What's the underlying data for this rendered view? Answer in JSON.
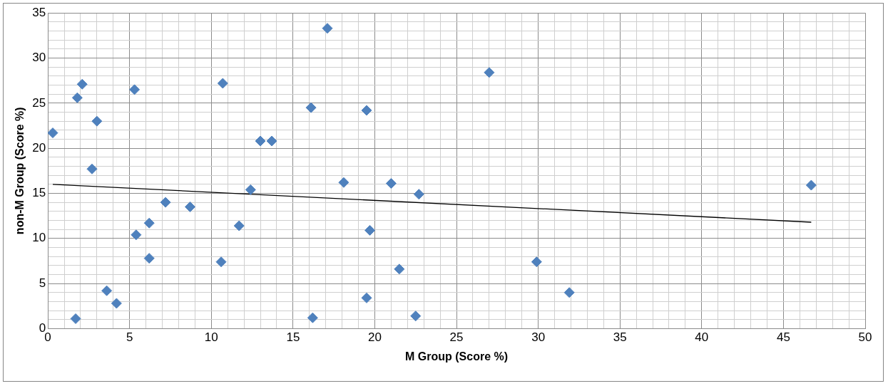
{
  "chart_data": {
    "type": "scatter",
    "xlabel": "M Group (Score %)",
    "ylabel": "non-M Group (Score %)",
    "x": [
      0.3,
      1.8,
      2.1,
      3.0,
      2.7,
      1.7,
      3.6,
      4.2,
      5.3,
      5.4,
      6.2,
      6.2,
      7.2,
      8.7,
      10.7,
      10.6,
      11.7,
      12.4,
      13.0,
      13.7,
      16.1,
      17.1,
      16.2,
      18.1,
      19.5,
      19.7,
      19.5,
      21.0,
      21.5,
      22.7,
      22.5,
      27.0,
      29.9,
      31.9,
      46.7
    ],
    "series": [
      {
        "color": "#4f81bd",
        "values": [
          21.7,
          25.6,
          27.1,
          23.0,
          17.7,
          1.1,
          4.2,
          2.8,
          26.5,
          10.4,
          11.7,
          7.8,
          14.0,
          13.5,
          27.2,
          7.4,
          11.4,
          15.4,
          20.8,
          20.8,
          24.5,
          33.3,
          1.2,
          16.2,
          24.2,
          10.9,
          3.4,
          16.1,
          6.6,
          14.9,
          1.4,
          28.4,
          7.4,
          4.0,
          15.9
        ]
      },
      {
        "type": "line",
        "color": "#000000",
        "x": [
          0.3,
          46.7
        ],
        "values": [
          16.0,
          11.8
        ],
        "marker": "none"
      }
    ],
    "xlim": [
      0,
      50
    ],
    "xticks": [
      0,
      {
        "value": 1,
        "label": null
      },
      {
        "value": 2,
        "label": null
      },
      {
        "value": 3,
        "label": null
      },
      {
        "value": 4,
        "label": null
      },
      5,
      {
        "value": 6,
        "label": null
      },
      {
        "value": 7,
        "label": null
      },
      {
        "value": 8,
        "label": null
      },
      {
        "value": 9,
        "label": null
      },
      10,
      {
        "value": 11,
        "label": null
      },
      {
        "value": 12,
        "label": null
      },
      {
        "value": 13,
        "label": null
      },
      {
        "value": 14,
        "label": null
      },
      15,
      {
        "value": 16,
        "label": null
      },
      {
        "value": 17,
        "label": null
      },
      {
        "value": 18,
        "label": null
      },
      {
        "value": 19,
        "label": null
      },
      20,
      {
        "value": 21,
        "label": null
      },
      {
        "value": 22,
        "label": null
      },
      {
        "value": 23,
        "label": null
      },
      {
        "value": 24,
        "label": null
      },
      25,
      {
        "value": 26,
        "label": null
      },
      {
        "value": 27,
        "label": null
      },
      {
        "value": 28,
        "label": null
      },
      {
        "value": 29,
        "label": null
      },
      30,
      {
        "value": 31,
        "label": null
      },
      {
        "value": 32,
        "label": null
      },
      {
        "value": 33,
        "label": null
      },
      {
        "value": 34,
        "label": null
      },
      35,
      {
        "value": 36,
        "label": null
      },
      {
        "value": 37,
        "label": null
      },
      {
        "value": 38,
        "label": null
      },
      {
        "value": 39,
        "label": null
      },
      40,
      {
        "value": 41,
        "label": null
      },
      {
        "value": 42,
        "label": null
      },
      {
        "value": 43,
        "label": null
      },
      {
        "value": 44,
        "label": null
      },
      45,
      {
        "value": 46,
        "label": null
      },
      {
        "value": 47,
        "label": null
      },
      {
        "value": 48,
        "label": null
      },
      {
        "value": 49,
        "label": null
      },
      50
    ],
    "ylim": [
      0,
      35
    ],
    "yticks": [
      0,
      {
        "value": 1,
        "label": null
      },
      {
        "value": 2,
        "label": null
      },
      {
        "value": 3,
        "label": null
      },
      {
        "value": 4,
        "label": null
      },
      5,
      {
        "value": 6,
        "label": null
      },
      {
        "value": 7,
        "label": null
      },
      {
        "value": 8,
        "label": null
      },
      {
        "value": 9,
        "label": null
      },
      10,
      {
        "value": 11,
        "label": null
      },
      {
        "value": 12,
        "label": null
      },
      {
        "value": 13,
        "label": null
      },
      {
        "value": 14,
        "label": null
      },
      15,
      {
        "value": 16,
        "label": null
      },
      {
        "value": 17,
        "label": null
      },
      {
        "value": 18,
        "label": null
      },
      {
        "value": 19,
        "label": null
      },
      20,
      {
        "value": 21,
        "label": null
      },
      {
        "value": 22,
        "label": null
      },
      {
        "value": 23,
        "label": null
      },
      {
        "value": 24,
        "label": null
      },
      25,
      {
        "value": 26,
        "label": null
      },
      {
        "value": 27,
        "label": null
      },
      {
        "value": 28,
        "label": null
      },
      {
        "value": 29,
        "label": null
      },
      30,
      {
        "value": 31,
        "label": null
      },
      {
        "value": 32,
        "label": null
      },
      {
        "value": 33,
        "label": null
      },
      {
        "value": 34,
        "label": null
      },
      35
    ],
    "grid": true,
    "legend": false,
    "marker": "diamond"
  }
}
